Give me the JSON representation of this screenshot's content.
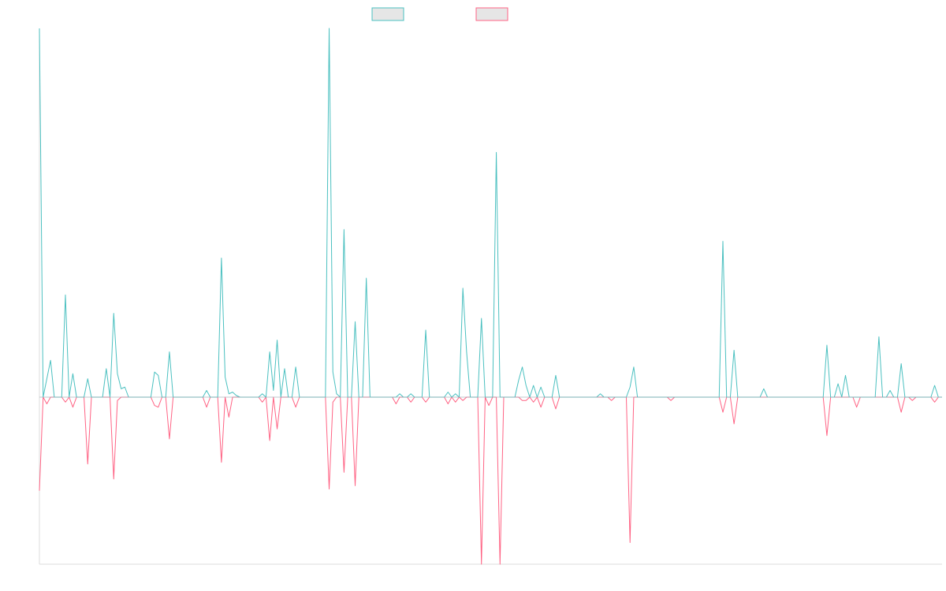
{
  "colors": {
    "positive": "#4bc0c0",
    "negative": "#ff6384",
    "zero_line": "#9aa3ad",
    "axis": "#dcdcdc",
    "legend_fill": "#e6e6e6"
  },
  "chart_data": {
    "type": "line",
    "title": "",
    "xlabel": "",
    "ylabel": "",
    "grid": false,
    "legend_position": "top-center",
    "x_points": 236,
    "ylim": [
      -100,
      220
    ],
    "series": [
      {
        "color": "#4bc0c0",
        "spikes": [
          [
            0,
            220
          ],
          [
            2,
            11
          ],
          [
            3,
            22
          ],
          [
            7,
            61
          ],
          [
            9,
            14
          ],
          [
            13,
            11
          ],
          [
            18,
            17
          ],
          [
            20,
            50
          ],
          [
            21,
            14
          ],
          [
            22,
            5
          ],
          [
            23,
            6
          ],
          [
            31,
            15
          ],
          [
            32,
            13
          ],
          [
            35,
            27
          ],
          [
            45,
            4
          ],
          [
            49,
            83
          ],
          [
            50,
            12
          ],
          [
            51,
            2
          ],
          [
            52,
            3
          ],
          [
            53,
            1
          ],
          [
            60,
            2
          ],
          [
            62,
            27
          ],
          [
            63,
            4
          ],
          [
            64,
            34
          ],
          [
            66,
            17
          ],
          [
            69,
            18
          ],
          [
            78,
            220
          ],
          [
            79,
            15
          ],
          [
            80,
            2
          ],
          [
            82,
            100
          ],
          [
            85,
            45
          ],
          [
            88,
            71
          ],
          [
            97,
            2
          ],
          [
            100,
            2
          ],
          [
            104,
            40
          ],
          [
            110,
            3
          ],
          [
            112,
            2
          ],
          [
            114,
            65
          ],
          [
            115,
            27
          ],
          [
            119,
            47
          ],
          [
            123,
            146
          ],
          [
            129,
            10
          ],
          [
            130,
            18
          ],
          [
            131,
            7
          ],
          [
            133,
            7
          ],
          [
            135,
            6
          ],
          [
            139,
            13
          ],
          [
            151,
            2
          ],
          [
            159,
            6
          ],
          [
            160,
            18
          ],
          [
            184,
            93
          ],
          [
            187,
            28
          ],
          [
            195,
            5
          ],
          [
            212,
            31
          ],
          [
            215,
            8
          ],
          [
            217,
            13
          ],
          [
            226,
            36
          ],
          [
            229,
            4
          ],
          [
            232,
            20
          ],
          [
            241,
            7
          ]
        ]
      },
      {
        "color": "#ff6384",
        "spikes": [
          [
            0,
            -56
          ],
          [
            2,
            -4
          ],
          [
            7,
            -3
          ],
          [
            9,
            -6
          ],
          [
            13,
            -40
          ],
          [
            20,
            -49
          ],
          [
            21,
            -2
          ],
          [
            31,
            -5
          ],
          [
            32,
            -6
          ],
          [
            35,
            -25
          ],
          [
            45,
            -6
          ],
          [
            49,
            -39
          ],
          [
            51,
            -12
          ],
          [
            60,
            -3
          ],
          [
            62,
            -26
          ],
          [
            64,
            -19
          ],
          [
            69,
            -6
          ],
          [
            78,
            -55
          ],
          [
            79,
            -3
          ],
          [
            82,
            -45
          ],
          [
            85,
            -53
          ],
          [
            96,
            -4
          ],
          [
            100,
            -3
          ],
          [
            104,
            -3
          ],
          [
            110,
            -4
          ],
          [
            112,
            -3
          ],
          [
            114,
            -2
          ],
          [
            119,
            -100
          ],
          [
            121,
            -5
          ],
          [
            124,
            -100
          ],
          [
            130,
            -2
          ],
          [
            131,
            -2
          ],
          [
            133,
            -3
          ],
          [
            135,
            -6
          ],
          [
            139,
            -7
          ],
          [
            154,
            -2
          ],
          [
            159,
            -87
          ],
          [
            170,
            -2
          ],
          [
            184,
            -9
          ],
          [
            187,
            -16
          ],
          [
            212,
            -23
          ],
          [
            220,
            -6
          ],
          [
            232,
            -9
          ],
          [
            235,
            -2
          ],
          [
            241,
            -3
          ]
        ]
      }
    ]
  }
}
